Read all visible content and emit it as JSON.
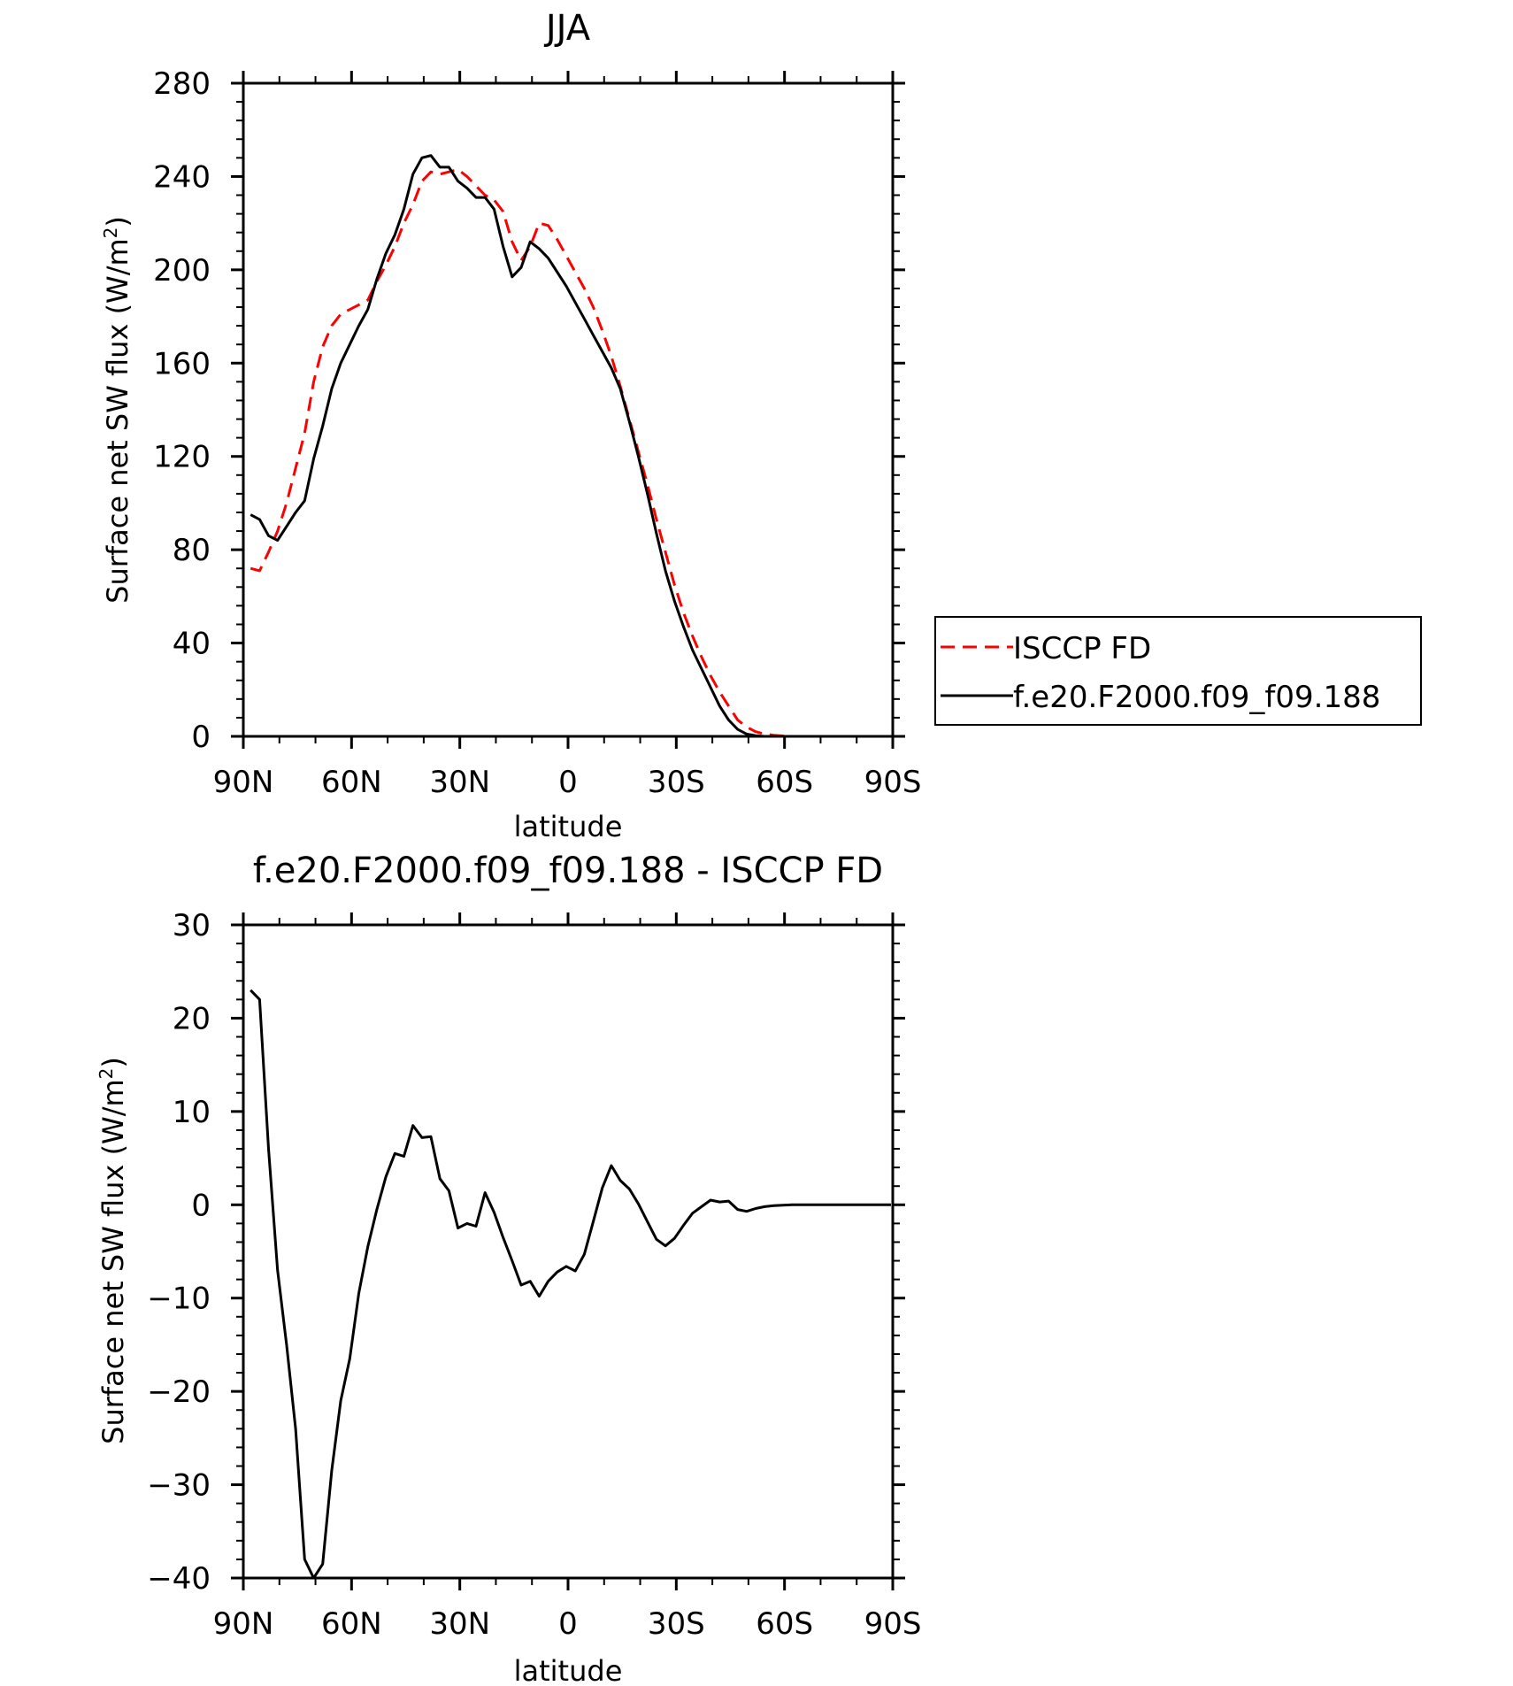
{
  "chart_data": [
    {
      "type": "line",
      "title": "JJA",
      "xlabel": "latitude",
      "ylabel_main": "Surface net SW flux (W/m",
      "ylabel_sup": "2",
      "ylabel_close": ")",
      "xlim": [
        90,
        -90
      ],
      "ylim": [
        0,
        280
      ],
      "xticks": [
        {
          "value": 90,
          "label": "90N"
        },
        {
          "value": 60,
          "label": "60N"
        },
        {
          "value": 30,
          "label": "30N"
        },
        {
          "value": 0,
          "label": "0"
        },
        {
          "value": -30,
          "label": "30S"
        },
        {
          "value": -60,
          "label": "60S"
        },
        {
          "value": -90,
          "label": "90S"
        }
      ],
      "yticks": [
        0,
        40,
        80,
        120,
        160,
        200,
        240,
        280
      ],
      "legend_position": "right",
      "series": [
        {
          "name": "ISCCP FD",
          "color": "#ff0000",
          "dash": "dashed",
          "x": [
            88,
            85.5,
            83,
            80.5,
            78,
            75.5,
            73,
            70.5,
            68,
            65.5,
            63,
            60.5,
            58,
            55.5,
            53,
            50.5,
            48,
            45.5,
            43,
            40.5,
            38,
            35.5,
            33,
            30.5,
            28,
            25.5,
            23,
            20.5,
            18,
            15.5,
            13,
            10.5,
            8,
            5.5,
            3,
            0.5,
            -2,
            -4.5,
            -7,
            -9.5,
            -12,
            -14.5,
            -17,
            -19.5,
            -22,
            -24.5,
            -27,
            -29.5,
            -32,
            -34.5,
            -37,
            -39.5,
            -42,
            -44.5,
            -47,
            -49.5,
            -52,
            -54.5,
            -57,
            -59.5,
            -62,
            -64.5,
            -67,
            -69.5,
            -72,
            -74.5,
            -77,
            -79.5,
            -82,
            -84.5,
            -87,
            -89.5
          ],
          "y": [
            72,
            71,
            79,
            88,
            100,
            115,
            130,
            152,
            167,
            176,
            181,
            183,
            185,
            187,
            195,
            202,
            210,
            220,
            228,
            238,
            242,
            241,
            242,
            243,
            240,
            236,
            232,
            230,
            225,
            212,
            204,
            210,
            220,
            219,
            213,
            206,
            199,
            192,
            184,
            174,
            163,
            150,
            136,
            122,
            108,
            93,
            79,
            65,
            53,
            43,
            34,
            26,
            19,
            13,
            7,
            4,
            2,
            1,
            0.5,
            0.2,
            0,
            0,
            0,
            0,
            0,
            0,
            0,
            0,
            0,
            0,
            0,
            0
          ]
        },
        {
          "name": "f.e20.F2000.f09_f09.188",
          "color": "#000000",
          "dash": "solid",
          "x": [
            88,
            85.5,
            83,
            80.5,
            78,
            75.5,
            73,
            70.5,
            68,
            65.5,
            63,
            60.5,
            58,
            55.5,
            53,
            50.5,
            48,
            45.5,
            43,
            40.5,
            38,
            35.5,
            33,
            30.5,
            28,
            25.5,
            23,
            20.5,
            18,
            15.5,
            13,
            10.5,
            8,
            5.5,
            3,
            0.5,
            -2,
            -4.5,
            -7,
            -9.5,
            -12,
            -14.5,
            -17,
            -19.5,
            -22,
            -24.5,
            -27,
            -29.5,
            -32,
            -34.5,
            -37,
            -39.5,
            -42,
            -44.5,
            -47,
            -49.5,
            -52,
            -54.5,
            -57,
            -59.5,
            -62,
            -64.5,
            -67,
            -69.5,
            -72,
            -74.5,
            -77,
            -79.5,
            -82,
            -84.5,
            -87,
            -89.5
          ],
          "y": [
            95,
            93,
            86,
            84,
            90,
            96,
            101,
            119,
            133,
            149,
            160,
            168,
            176,
            183,
            196,
            207,
            215,
            226,
            241,
            248,
            249,
            244,
            244,
            238,
            235,
            231,
            231,
            226,
            210,
            197,
            201,
            212,
            209,
            205,
            199,
            193,
            186,
            179,
            172,
            165,
            158,
            149,
            135,
            120,
            104,
            87,
            71,
            58,
            47,
            37,
            29,
            21,
            13,
            7,
            3,
            1,
            0.3,
            0,
            0,
            0,
            0,
            0,
            0,
            0,
            0,
            0,
            0,
            0,
            0,
            0,
            0,
            0
          ]
        }
      ]
    },
    {
      "type": "line",
      "title": "f.e20.F2000.f09_f09.188 - ISCCP FD",
      "xlabel": "latitude",
      "ylabel_main": "Surface net SW flux (W/m",
      "ylabel_sup": "2",
      "ylabel_close": ")",
      "xlim": [
        90,
        -90
      ],
      "ylim": [
        -40,
        30
      ],
      "xticks": [
        {
          "value": 90,
          "label": "90N"
        },
        {
          "value": 60,
          "label": "60N"
        },
        {
          "value": 30,
          "label": "30N"
        },
        {
          "value": 0,
          "label": "0"
        },
        {
          "value": -30,
          "label": "30S"
        },
        {
          "value": -60,
          "label": "60S"
        },
        {
          "value": -90,
          "label": "90S"
        }
      ],
      "yticks": [
        -40,
        -30,
        -20,
        -10,
        0,
        10,
        20,
        30
      ],
      "ytick_labels": [
        "−40",
        "−30",
        "−20",
        "−10",
        "0",
        "10",
        "20",
        "30"
      ],
      "series": [
        {
          "color": "#000000",
          "dash": "solid",
          "x": [
            88,
            85.5,
            83,
            80.5,
            78,
            75.5,
            73,
            70.5,
            68,
            65.5,
            63,
            60.5,
            58,
            55.5,
            53,
            50.5,
            48,
            45.5,
            43,
            40.5,
            38,
            35.5,
            33,
            30.5,
            28,
            25.5,
            23,
            20.5,
            18,
            15.5,
            13,
            10.5,
            8,
            5.5,
            3,
            0.5,
            -2,
            -4.5,
            -7,
            -9.5,
            -12,
            -14.5,
            -17,
            -19.5,
            -22,
            -24.5,
            -27,
            -29.5,
            -32,
            -34.5,
            -37,
            -39.5,
            -42,
            -44.5,
            -47,
            -49.5,
            -52,
            -54.5,
            -57,
            -59.5,
            -62,
            -64.5,
            -67,
            -69.5,
            -72,
            -74.5,
            -77,
            -79.5,
            -82,
            -84.5,
            -87,
            -89.5
          ],
          "y": [
            23,
            22,
            6,
            -7,
            -15,
            -24,
            -38,
            -40,
            -38.5,
            -28.5,
            -21,
            -16.5,
            -9.5,
            -4.5,
            -0.5,
            3,
            5.5,
            5.2,
            8.5,
            7.2,
            7.3,
            2.8,
            1.5,
            -2.5,
            -2.0,
            -2.3,
            1.3,
            -0.8,
            -3.5,
            -6,
            -8.6,
            -8.2,
            -9.8,
            -8.2,
            -7.2,
            -6.6,
            -7.1,
            -5.3,
            -1.8,
            1.8,
            4.2,
            2.6,
            1.7,
            0.1,
            -1.8,
            -3.7,
            -4.4,
            -3.6,
            -2.2,
            -0.9,
            -0.2,
            0.5,
            0.3,
            0.4,
            -0.5,
            -0.7,
            -0.4,
            -0.2,
            -0.1,
            -0.05,
            0,
            0,
            0,
            0,
            0,
            0,
            0,
            0,
            0,
            0,
            0,
            0
          ]
        }
      ]
    }
  ]
}
